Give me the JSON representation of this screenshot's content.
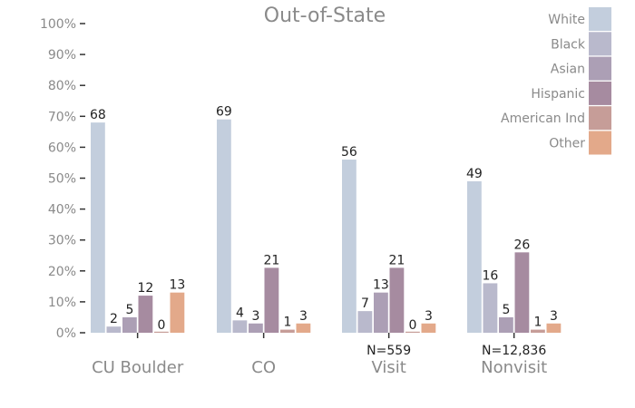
{
  "chart_data": {
    "type": "bar",
    "title": "Out-of-State",
    "xlabel": "",
    "ylabel": "",
    "ylim": [
      0,
      100
    ],
    "yticks": [
      "0%",
      "10%",
      "20%",
      "30%",
      "40%",
      "50%",
      "60%",
      "70%",
      "80%",
      "90%",
      "100%"
    ],
    "categories": [
      "CU Boulder",
      "CO",
      "Visit",
      "Nonvisit"
    ],
    "category_notes": [
      "",
      "",
      "N=559",
      "N=12,836"
    ],
    "legend_position": "top-right",
    "grid": false,
    "series": [
      {
        "name": "White",
        "color": "#c3cedd",
        "values": [
          68,
          69,
          56,
          49
        ]
      },
      {
        "name": "Black",
        "color": "#b9b9cc",
        "values": [
          2,
          4,
          7,
          16
        ]
      },
      {
        "name": "Asian",
        "color": "#ac9fb5",
        "values": [
          5,
          3,
          13,
          5
        ]
      },
      {
        "name": "Hispanic",
        "color": "#a68ba0",
        "values": [
          12,
          21,
          21,
          26
        ]
      },
      {
        "name": "American Ind",
        "color": "#c69d98",
        "values": [
          0,
          1,
          0,
          1
        ]
      },
      {
        "name": "Other",
        "color": "#e3a98a",
        "values": [
          13,
          3,
          3,
          3
        ]
      }
    ]
  }
}
